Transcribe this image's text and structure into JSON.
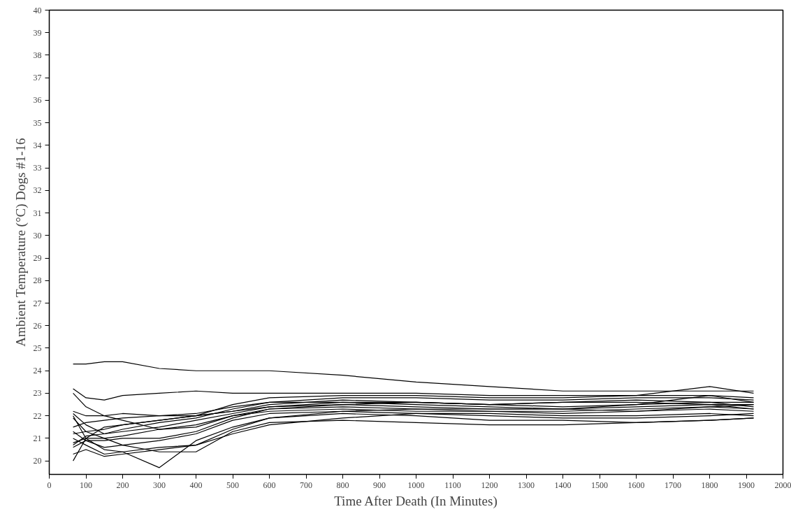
{
  "chart_data": {
    "type": "line",
    "xlabel": "Time After Death (In Minutes)",
    "ylabel": "Ambient Temperature (°C) Dogs #1-16",
    "x": [
      65,
      100,
      150,
      200,
      300,
      400,
      500,
      600,
      800,
      1000,
      1200,
      1400,
      1600,
      1800,
      1920
    ],
    "series": [
      {
        "color": "#000000",
        "values": [
          24.3,
          24.3,
          24.4,
          24.4,
          24.1,
          24.0,
          24.0,
          24.0,
          23.8,
          23.5,
          23.3,
          23.1,
          23.1,
          23.1,
          23.1
        ]
      },
      {
        "color": "#000000",
        "values": [
          23.2,
          22.8,
          22.7,
          22.9,
          23.0,
          23.1,
          23.0,
          23.0,
          23.0,
          23.0,
          22.9,
          22.9,
          22.9,
          23.3,
          23.0
        ]
      },
      {
        "color": "#000000",
        "values": [
          22.0,
          21.0,
          20.5,
          20.4,
          19.7,
          20.9,
          21.5,
          21.9,
          22.1,
          22.0,
          21.8,
          21.8,
          21.7,
          21.8,
          21.9
        ]
      },
      {
        "color": "#000000",
        "values": [
          20.0,
          21.0,
          21.5,
          21.6,
          21.8,
          22.0,
          22.2,
          22.4,
          22.5,
          22.4,
          22.3,
          22.3,
          22.5,
          22.9,
          22.8
        ]
      },
      {
        "color": "#000000",
        "values": [
          20.3,
          20.5,
          20.2,
          20.3,
          20.5,
          20.7,
          21.2,
          21.6,
          21.9,
          22.1,
          22.1,
          22.0,
          22.0,
          22.1,
          22.0
        ]
      },
      {
        "color": "#000000",
        "values": [
          21.0,
          20.7,
          20.3,
          20.4,
          20.6,
          20.7,
          21.4,
          21.9,
          22.2,
          22.3,
          22.2,
          22.1,
          22.2,
          22.3,
          22.2
        ]
      },
      {
        "color": "#000000",
        "values": [
          20.6,
          20.9,
          20.9,
          21.0,
          21.0,
          21.3,
          21.9,
          22.3,
          22.5,
          22.6,
          22.5,
          22.4,
          22.5,
          22.6,
          22.4
        ]
      },
      {
        "color": "#000000",
        "values": [
          21.5,
          21.7,
          21.8,
          21.9,
          22.0,
          22.1,
          22.4,
          22.6,
          22.6,
          22.6,
          22.5,
          22.6,
          22.6,
          22.5,
          22.5
        ]
      },
      {
        "color": "#000000",
        "values": [
          22.1,
          21.6,
          21.2,
          21.4,
          21.7,
          21.9,
          22.3,
          22.6,
          22.8,
          22.8,
          22.7,
          22.7,
          22.8,
          22.8,
          22.7
        ]
      },
      {
        "color": "#000000",
        "values": [
          21.2,
          21.3,
          21.4,
          21.6,
          21.8,
          22.0,
          22.5,
          22.8,
          22.9,
          22.9,
          22.8,
          22.8,
          22.9,
          22.9,
          22.6
        ]
      },
      {
        "color": "#000000",
        "values": [
          20.8,
          21.0,
          21.0,
          21.1,
          21.4,
          21.6,
          22.0,
          22.2,
          22.3,
          22.2,
          22.2,
          22.2,
          22.3,
          22.4,
          22.3
        ]
      },
      {
        "color": "#000000",
        "values": [
          21.3,
          20.9,
          20.6,
          20.7,
          20.9,
          21.2,
          21.8,
          22.1,
          22.2,
          22.1,
          22.0,
          21.9,
          21.9,
          22.0,
          22.1
        ]
      },
      {
        "color": "#000000",
        "values": [
          23.0,
          22.4,
          22.0,
          21.8,
          21.4,
          21.5,
          22.0,
          22.3,
          22.4,
          22.3,
          22.3,
          22.3,
          22.4,
          22.5,
          22.3
        ]
      },
      {
        "color": "#000000",
        "values": [
          20.7,
          21.1,
          21.2,
          21.3,
          21.5,
          21.8,
          22.1,
          22.4,
          22.6,
          22.5,
          22.4,
          22.3,
          22.2,
          22.4,
          22.5
        ]
      },
      {
        "color": "#000000",
        "values": [
          21.9,
          21.3,
          21.0,
          20.7,
          20.4,
          20.4,
          21.3,
          21.7,
          21.8,
          21.7,
          21.6,
          21.6,
          21.7,
          21.8,
          21.9
        ]
      },
      {
        "color": "#000000",
        "values": [
          22.2,
          22.0,
          22.0,
          22.1,
          22.0,
          22.0,
          22.2,
          22.5,
          22.7,
          22.6,
          22.5,
          22.6,
          22.7,
          22.6,
          22.6
        ]
      }
    ],
    "xlim": [
      0,
      2000
    ],
    "ylim": [
      19.4,
      40
    ],
    "xticks": [
      0,
      100,
      200,
      300,
      400,
      500,
      600,
      700,
      800,
      900,
      1000,
      1100,
      1200,
      1300,
      1400,
      1500,
      1600,
      1700,
      1800,
      1900,
      2000
    ],
    "yticks": [
      20,
      21,
      22,
      23,
      24,
      25,
      26,
      27,
      28,
      29,
      30,
      31,
      32,
      33,
      34,
      35,
      36,
      37,
      38,
      39,
      40
    ],
    "grid": false,
    "marker": "none",
    "line_style": "solid"
  }
}
